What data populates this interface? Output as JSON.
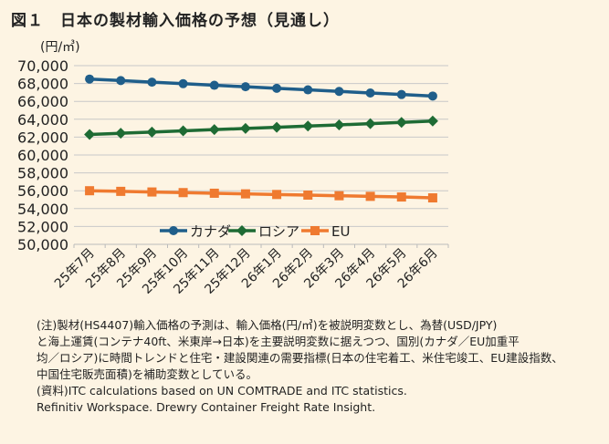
{
  "title": "図１　日本の製材輸入価格の予想（見通し）",
  "notes": [
    "(注)製材(HS4407)輸入価格の予測は、輸入価格(円/㎥)を被説明変数とし、為替(USD/JPY)",
    "と海上運賃(コンテナ40ft、米東岸→日本)を主要説明変数に据えつつ、国別(カナダ／EU加重平",
    "均／ロシア)に時間トレンドと住宅・建設関連の需要指標(日本の住宅着工、米住宅竣工、EU建設指数、",
    "中国住宅販売面積)を補助変数としている。",
    "(資料)ITC calculations based on UN COMTRADE and ITC statistics.",
    "Refinitiv Workspace. Drewry Container Freight Rate Insight."
  ],
  "chart_data": {
    "type": "line",
    "title": "",
    "ylabel": "(円/㎥)",
    "xlabel": "",
    "ylim": [
      50000,
      70000
    ],
    "yticks": [
      "50,000",
      "52,000",
      "54,000",
      "56,000",
      "58,000",
      "60,000",
      "62,000",
      "64,000",
      "66,000",
      "68,000",
      "70,000"
    ],
    "categories": [
      "25年7月",
      "25年8月",
      "25年9月",
      "25年10月",
      "25年11月",
      "25年12月",
      "26年1月",
      "26年2月",
      "26年3月",
      "26年4月",
      "26年5月",
      "26年6月"
    ],
    "legend_position": "bottom-inside",
    "grid": true,
    "series": [
      {
        "name": "カナダ",
        "color": "#1f5e8a",
        "marker": "circle",
        "values": [
          68500,
          68330,
          68150,
          67980,
          67800,
          67640,
          67460,
          67290,
          67120,
          66940,
          66770,
          66600
        ]
      },
      {
        "name": "ロシア",
        "color": "#1e6b34",
        "marker": "diamond",
        "values": [
          62300,
          62430,
          62560,
          62700,
          62840,
          62970,
          63100,
          63240,
          63370,
          63510,
          63650,
          63800
        ]
      },
      {
        "name": "EU",
        "color": "#ef7a30",
        "marker": "square",
        "values": [
          56000,
          55930,
          55860,
          55790,
          55720,
          55650,
          55580,
          55510,
          55440,
          55370,
          55300,
          55200
        ]
      }
    ]
  }
}
